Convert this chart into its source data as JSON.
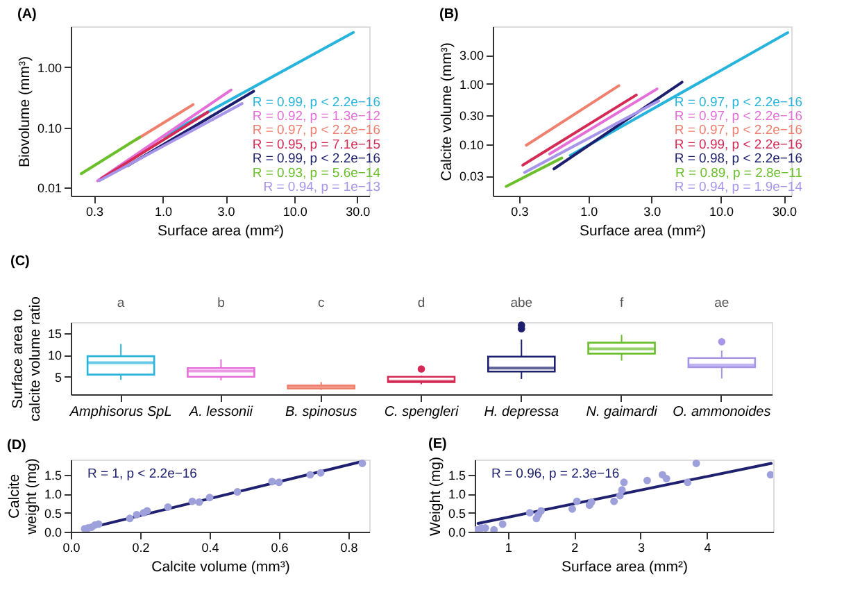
{
  "chart_data": [
    {
      "type": "line",
      "title": "(A)",
      "xlabel": "Surface area (mm²)",
      "ylabel": "Biovolume (mm³)",
      "log": "xy",
      "xlim": [
        0.2,
        37
      ],
      "ylim": [
        0.0073,
        4.8
      ],
      "xticks": [
        {
          "value": 0.3,
          "label": "0.3"
        },
        {
          "value": 1,
          "label": "1.0"
        },
        {
          "value": 3,
          "label": "3.0"
        },
        {
          "value": 10,
          "label": "10.0"
        },
        {
          "value": 30,
          "label": "30.0"
        }
      ],
      "yticks": [
        {
          "value": 0.01,
          "label": "0.01"
        },
        {
          "value": 0.1,
          "label": "0.10"
        },
        {
          "value": 1,
          "label": "1.00"
        }
      ],
      "series": [
        {
          "color": "#27b4dc",
          "x": [
            1.0,
            28
          ],
          "values": [
            0.07,
            3.8
          ]
        },
        {
          "color": "#e46fd8",
          "x": [
            0.32,
            3.3
          ],
          "values": [
            0.013,
            0.42
          ]
        },
        {
          "color": "#f0806e",
          "x": [
            0.63,
            1.7
          ],
          "values": [
            0.063,
            0.24
          ]
        },
        {
          "color": "#d42a55",
          "x": [
            0.34,
            2.2
          ],
          "values": [
            0.014,
            0.18
          ]
        },
        {
          "color": "#1c1f6e",
          "x": [
            0.54,
            4.9
          ],
          "values": [
            0.023,
            0.4
          ]
        },
        {
          "color": "#6abf2a",
          "x": [
            0.24,
            0.67
          ],
          "values": [
            0.017,
            0.069
          ]
        },
        {
          "color": "#a795ea",
          "x": [
            0.33,
            4.0
          ],
          "values": [
            0.013,
            0.25
          ]
        }
      ],
      "annotations": [
        "R = 0.99, p < 2.2e−16",
        "R = 0.92, p = 1.3e−12",
        "R = 0.97, p < 2.2e−16",
        "R = 0.95, p = 7.1e−15",
        "R = 0.99, p < 2.2e−16",
        "R = 0.93, p = 5.6e−14",
        "R = 0.94, p = 1e−13"
      ]
    },
    {
      "type": "line",
      "title": "(B)",
      "xlabel": "Surface area (mm²)",
      "ylabel": "Calcite volume (mm³)",
      "log": "xy",
      "xlim": [
        0.19,
        34
      ],
      "ylim": [
        0.014,
        8.9
      ],
      "xticks": [
        {
          "value": 0.3,
          "label": "0.3"
        },
        {
          "value": 1,
          "label": "1.0"
        },
        {
          "value": 3,
          "label": "3.0"
        },
        {
          "value": 10,
          "label": "10.0"
        },
        {
          "value": 30,
          "label": "30.0"
        }
      ],
      "yticks": [
        {
          "value": 0.03,
          "label": "0.03"
        },
        {
          "value": 0.1,
          "label": "0.10"
        },
        {
          "value": 0.3,
          "label": "0.30"
        },
        {
          "value": 1,
          "label": "1.00"
        },
        {
          "value": 3,
          "label": "3.00"
        }
      ],
      "series": [
        {
          "color": "#27b4dc",
          "x": [
            0.73,
            32
          ],
          "values": [
            0.065,
            7.0
          ]
        },
        {
          "color": "#e46fd8",
          "x": [
            0.51,
            3.3
          ],
          "values": [
            0.069,
            0.82
          ]
        },
        {
          "color": "#f0806e",
          "x": [
            0.34,
            1.7
          ],
          "values": [
            0.096,
            0.93
          ]
        },
        {
          "color": "#d42a55",
          "x": [
            0.32,
            2.3
          ],
          "values": [
            0.045,
            0.65
          ]
        },
        {
          "color": "#1c1f6e",
          "x": [
            0.55,
            5.1
          ],
          "values": [
            0.039,
            1.06
          ]
        },
        {
          "color": "#6abf2a",
          "x": [
            0.24,
            0.63
          ],
          "values": [
            0.02,
            0.059
          ]
        },
        {
          "color": "#a795ea",
          "x": [
            0.33,
            3.4
          ],
          "values": [
            0.034,
            0.52
          ]
        }
      ],
      "annotations": [
        "R = 0.97, p < 2.2e−16",
        "R = 0.97, p < 2.2e−16",
        "R = 0.97, p < 2.2e−16",
        "R = 0.99, p < 2.2e−16",
        "R = 0.98, p < 2.2e−16",
        "R = 0.89, p = 2.8e−11",
        "R = 0.94, p = 1.9e−14"
      ]
    },
    {
      "type": "box",
      "title": "(C)",
      "ylabel": "Surface area to calcite volume ratio",
      "ylim": [
        1,
        17.5
      ],
      "yticks": [
        5,
        10,
        15
      ],
      "categories": [
        "Amphisorus SpL",
        "A. lessonii",
        "B. spinosus",
        "C. spengleri",
        "H. depressa",
        "N. gaimardi",
        "O. ammonoides"
      ],
      "colors": [
        "#27b4dc",
        "#e46fd8",
        "#f0806e",
        "#d42a55",
        "#1c1f6e",
        "#6abf2a",
        "#a795ea"
      ],
      "boxes": [
        {
          "low": 4.3,
          "q1": 5.5,
          "median": 8.2,
          "q3": 9.7,
          "high": 12.5
        },
        {
          "low": 4.2,
          "q1": 5,
          "median": 6.3,
          "q3": 7,
          "high": 9
        },
        {
          "low": 2,
          "q1": 2.3,
          "median": 2.7,
          "q3": 3,
          "high": 3.8
        },
        {
          "low": 3.3,
          "q1": 3.8,
          "median": 4,
          "q3": 5,
          "high": 5.2,
          "outliers": [
            6.8
          ]
        },
        {
          "low": 4.5,
          "q1": 6.2,
          "median": 7,
          "q3": 9.6,
          "high": 13.5,
          "outliers": [
            16,
            16.8
          ]
        },
        {
          "low": 8.7,
          "q1": 10.3,
          "median": 11.4,
          "q3": 12.8,
          "high": 14.6
        },
        {
          "low": 4.6,
          "q1": 7.2,
          "median": 7.7,
          "q3": 9.3,
          "high": 11,
          "outliers": [
            13
          ]
        }
      ],
      "annotations": [
        "a",
        "b",
        "c",
        "d",
        "abe",
        "f",
        "ae"
      ]
    },
    {
      "type": "scatter",
      "title": "(D)",
      "xlabel": "Calcite volume (mm³)",
      "ylabel": "Calcite weight (mg)",
      "xlim": [
        0,
        0.86
      ],
      "ylim": [
        0,
        1.9
      ],
      "xticks": [
        {
          "value": 0,
          "label": "0.0"
        },
        0.2,
        0.4,
        0.6,
        0.8
      ],
      "yticks": [
        {
          "value": 0,
          "label": "0.0"
        },
        0.5,
        {
          "value": 1,
          "label": "1.0"
        },
        1.5
      ],
      "series": [
        {
          "type": "line",
          "color": "#1f2170",
          "x": [
            0.04,
            0.84
          ],
          "values": [
            0.07,
            1.85
          ]
        },
        {
          "color": "#9ea0dc",
          "x": [
            0.04,
            0.05,
            0.06,
            0.07,
            0.08,
            0.17,
            0.19,
            0.21,
            0.22,
            0.28,
            0.35,
            0.37,
            0.4,
            0.48,
            0.58,
            0.6,
            0.69,
            0.72,
            0.84
          ],
          "values": [
            0.08,
            0.1,
            0.12,
            0.18,
            0.2,
            0.35,
            0.45,
            0.5,
            0.55,
            0.65,
            0.8,
            0.78,
            0.9,
            1.05,
            1.32,
            1.3,
            1.5,
            1.55,
            1.8
          ]
        }
      ],
      "annotations": [
        "R = 1, p < 2.2e−16"
      ]
    },
    {
      "type": "scatter",
      "title": "(E)",
      "xlabel": "Surface area (mm²)",
      "ylabel": "Weight (mg)",
      "xlim": [
        0.5,
        5.0
      ],
      "ylim": [
        0,
        1.9
      ],
      "xticks": [
        1,
        2,
        3,
        4
      ],
      "yticks": [
        {
          "value": 0,
          "label": "0.0"
        },
        0.5,
        {
          "value": 1,
          "label": "1.0"
        },
        1.5
      ],
      "series": [
        {
          "type": "line",
          "color": "#1f2170",
          "x": [
            0.55,
            4.97
          ],
          "values": [
            0.22,
            1.8
          ]
        },
        {
          "color": "#9ea0dc",
          "x": [
            0.53,
            0.6,
            0.66,
            0.79,
            0.92,
            1.33,
            1.43,
            1.46,
            1.5,
            1.97,
            2.04,
            2.23,
            2.26,
            2.6,
            2.69,
            2.72,
            2.75,
            3.1,
            3.33,
            3.39,
            3.71,
            3.84,
            4.96
          ],
          "values": [
            0.05,
            0.1,
            0.1,
            0.05,
            0.2,
            0.5,
            0.35,
            0.45,
            0.55,
            0.6,
            0.8,
            0.7,
            0.78,
            0.8,
            0.95,
            1.1,
            1.3,
            1.35,
            1.5,
            1.4,
            1.3,
            1.8,
            1.5
          ]
        }
      ],
      "annotations": [
        "R = 0.96, p = 2.3e−16"
      ]
    }
  ]
}
